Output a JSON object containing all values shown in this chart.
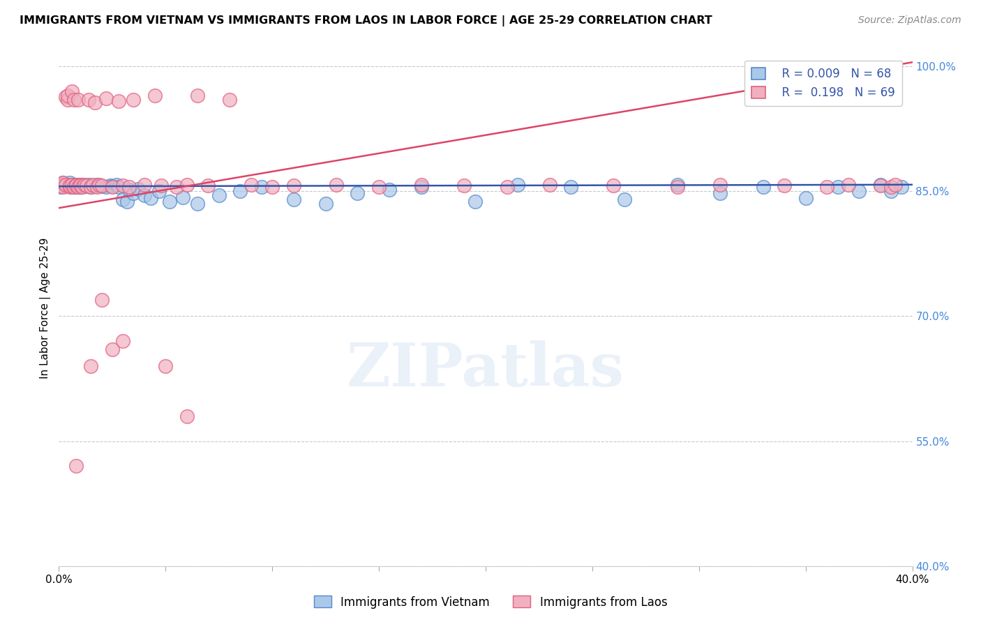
{
  "title": "IMMIGRANTS FROM VIETNAM VS IMMIGRANTS FROM LAOS IN LABOR FORCE | AGE 25-29 CORRELATION CHART",
  "source": "Source: ZipAtlas.com",
  "ylabel": "In Labor Force | Age 25-29",
  "x_min": 0.0,
  "x_max": 0.4,
  "y_min": 0.4,
  "y_max": 1.02,
  "x_ticks": [
    0.0,
    0.05,
    0.1,
    0.15,
    0.2,
    0.25,
    0.3,
    0.35,
    0.4
  ],
  "y_ticks_right": [
    0.4,
    0.55,
    0.7,
    0.85,
    1.0
  ],
  "y_tick_labels_right": [
    "40.0%",
    "55.0%",
    "70.0%",
    "85.0%",
    "100.0%"
  ],
  "color_vietnam": "#aac8e8",
  "color_vietnam_border": "#5588cc",
  "color_vietnam_line": "#3355aa",
  "color_laos": "#f0b0c0",
  "color_laos_border": "#e06080",
  "color_laos_line": "#dd4466",
  "background_color": "#ffffff",
  "grid_color": "#bbbbbb",
  "watermark": "ZIPatlas",
  "vietnam_line_y0": 0.856,
  "vietnam_line_y1": 0.858,
  "laos_line_y0": 0.83,
  "laos_line_y1": 1.005,
  "vietnam_x": [
    0.001,
    0.002,
    0.002,
    0.003,
    0.003,
    0.004,
    0.004,
    0.005,
    0.005,
    0.005,
    0.006,
    0.006,
    0.007,
    0.007,
    0.008,
    0.008,
    0.009,
    0.009,
    0.01,
    0.01,
    0.011,
    0.011,
    0.012,
    0.013,
    0.014,
    0.015,
    0.016,
    0.017,
    0.018,
    0.019,
    0.02,
    0.022,
    0.024,
    0.025,
    0.027,
    0.028,
    0.03,
    0.032,
    0.033,
    0.035,
    0.037,
    0.04,
    0.043,
    0.047,
    0.052,
    0.058,
    0.065,
    0.075,
    0.085,
    0.095,
    0.11,
    0.125,
    0.14,
    0.155,
    0.17,
    0.195,
    0.215,
    0.24,
    0.265,
    0.29,
    0.31,
    0.33,
    0.35,
    0.365,
    0.375,
    0.385,
    0.39,
    0.395
  ],
  "vietnam_y": [
    0.855,
    0.86,
    0.858,
    0.857,
    0.856,
    0.858,
    0.857,
    0.856,
    0.858,
    0.86,
    0.855,
    0.857,
    0.856,
    0.858,
    0.855,
    0.857,
    0.856,
    0.858,
    0.855,
    0.857,
    0.856,
    0.858,
    0.857,
    0.856,
    0.858,
    0.855,
    0.857,
    0.856,
    0.858,
    0.857,
    0.856,
    0.855,
    0.857,
    0.856,
    0.858,
    0.855,
    0.84,
    0.838,
    0.852,
    0.848,
    0.853,
    0.845,
    0.842,
    0.85,
    0.838,
    0.843,
    0.835,
    0.845,
    0.85,
    0.855,
    0.84,
    0.835,
    0.848,
    0.852,
    0.855,
    0.838,
    0.858,
    0.855,
    0.84,
    0.858,
    0.848,
    0.855,
    0.842,
    0.855,
    0.85,
    0.858,
    0.85,
    0.855
  ],
  "laos_x": [
    0.001,
    0.001,
    0.002,
    0.002,
    0.003,
    0.003,
    0.004,
    0.004,
    0.005,
    0.005,
    0.006,
    0.006,
    0.007,
    0.007,
    0.008,
    0.008,
    0.009,
    0.009,
    0.01,
    0.01,
    0.011,
    0.012,
    0.013,
    0.014,
    0.015,
    0.016,
    0.017,
    0.018,
    0.019,
    0.02,
    0.022,
    0.025,
    0.028,
    0.03,
    0.033,
    0.035,
    0.04,
    0.045,
    0.048,
    0.055,
    0.06,
    0.065,
    0.07,
    0.08,
    0.09,
    0.1,
    0.11,
    0.13,
    0.15,
    0.17,
    0.19,
    0.21,
    0.23,
    0.26,
    0.29,
    0.31,
    0.34,
    0.36,
    0.37,
    0.385,
    0.39,
    0.392,
    0.02,
    0.03,
    0.05,
    0.06,
    0.025,
    0.015,
    0.008
  ],
  "laos_y": [
    0.858,
    0.857,
    0.855,
    0.86,
    0.858,
    0.963,
    0.96,
    0.965,
    0.855,
    0.857,
    0.858,
    0.97,
    0.855,
    0.96,
    0.858,
    0.857,
    0.855,
    0.96,
    0.858,
    0.857,
    0.855,
    0.858,
    0.857,
    0.96,
    0.855,
    0.858,
    0.957,
    0.855,
    0.858,
    0.857,
    0.962,
    0.855,
    0.958,
    0.857,
    0.855,
    0.96,
    0.858,
    0.965,
    0.857,
    0.855,
    0.858,
    0.965,
    0.857,
    0.96,
    0.858,
    0.855,
    0.857,
    0.858,
    0.855,
    0.858,
    0.857,
    0.855,
    0.858,
    0.857,
    0.855,
    0.858,
    0.857,
    0.855,
    0.858,
    0.857,
    0.855,
    0.858,
    0.72,
    0.67,
    0.64,
    0.58,
    0.66,
    0.64,
    0.52
  ]
}
